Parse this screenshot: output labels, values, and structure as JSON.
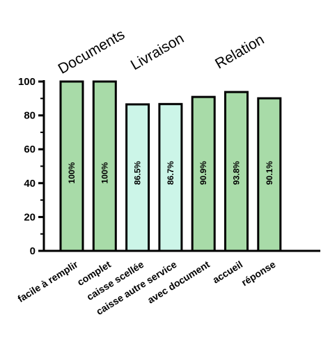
{
  "chart_data": {
    "type": "bar",
    "categories": [
      "facile à remplir",
      "complet",
      "caisse scellée",
      "caisse autre service",
      "avec document",
      "accueil",
      "réponse"
    ],
    "values": [
      100,
      100,
      86.5,
      86.7,
      90.9,
      93.8,
      90.1
    ],
    "data_labels": [
      "100%",
      "100%",
      "86.5%",
      "86.7%",
      "90.9%",
      "93.8%",
      "90.1%"
    ],
    "bar_colors": [
      "#a8dba8",
      "#a8dba8",
      "#ccf5e8",
      "#ccf5e8",
      "#a8dba8",
      "#a8dba8",
      "#a8dba8"
    ],
    "group_labels": [
      "Documents",
      "Livraison",
      "Relation"
    ],
    "yticks": [
      0,
      20,
      40,
      60,
      80,
      100
    ],
    "ylim": [
      0,
      100
    ],
    "xlabel": "",
    "ylabel": "",
    "title": "",
    "grid": false,
    "legend": "none"
  }
}
